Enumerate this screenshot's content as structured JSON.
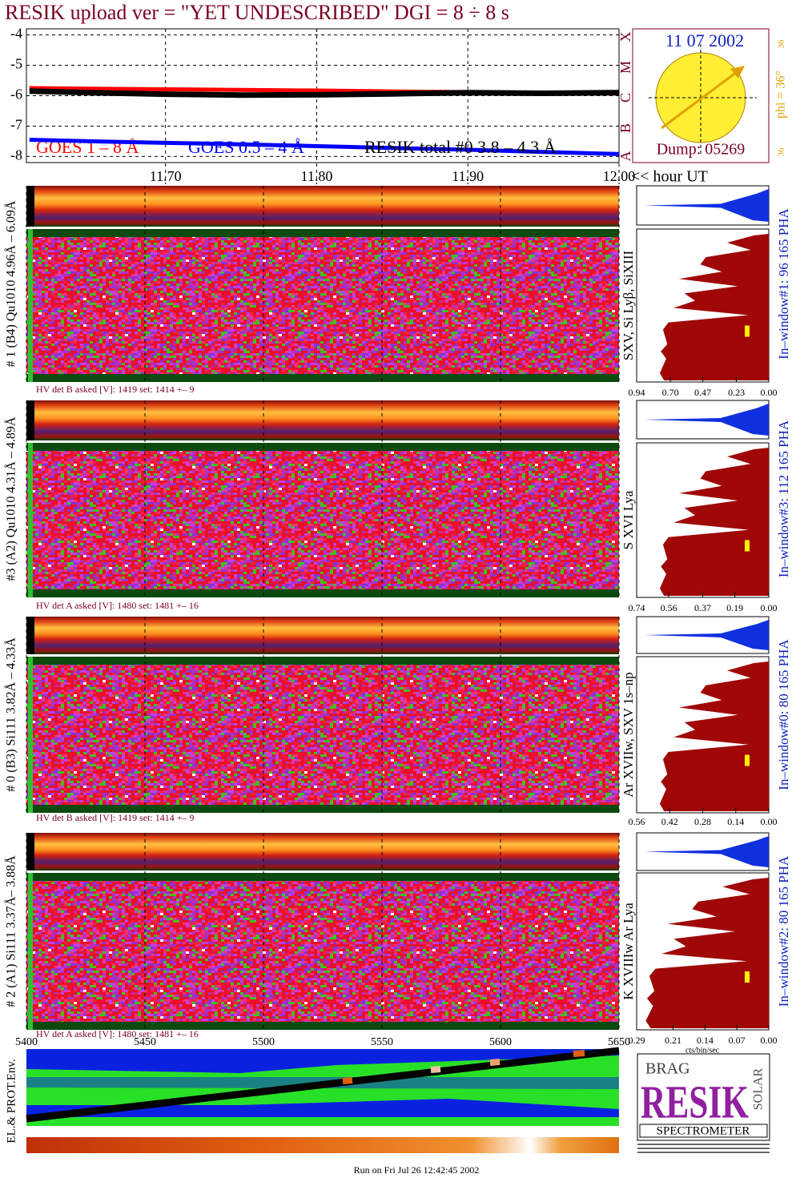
{
  "title": "RESIK upload ver = \"YET UNDESCRIBED\"  DGI =   8 ÷   8 s",
  "chart_data": {
    "type": "line",
    "xlim": [
      11.608,
      12.0
    ],
    "xticks": [
      {
        "value": 11.7,
        "label": "11.70"
      },
      {
        "value": 11.8,
        "label": "11.80"
      },
      {
        "value": 11.9,
        "label": "11.90"
      },
      {
        "value": 12,
        "label": "12.00"
      }
    ],
    "x_axis_label": "<< hour UT",
    "ylim": [
      -8.2,
      -3.8
    ],
    "yticks": [
      -4,
      -5,
      -6,
      -7,
      -8
    ],
    "grid": true,
    "x": [
      11.61,
      11.65,
      11.7,
      11.75,
      11.8,
      11.85,
      11.9,
      11.95,
      12.0
    ],
    "series": [
      {
        "name": "GOES 1 – 8 Å",
        "color": "#ff0000",
        "values": [
          -5.75,
          -5.77,
          -5.79,
          -5.81,
          -5.83,
          -5.86,
          -5.88,
          -5.91,
          -5.93
        ]
      },
      {
        "name": "GOES 0.5 – 4 Å",
        "color": "#0000ff",
        "values": [
          -7.45,
          -7.5,
          -7.55,
          -7.6,
          -7.66,
          -7.72,
          -7.78,
          -7.85,
          -7.92
        ]
      },
      {
        "name": "RESIK total #0  3.8 – 4.3 Å",
        "color": "#000000",
        "values": [
          -5.85,
          -5.9,
          -5.95,
          -5.98,
          -5.97,
          -5.94,
          -5.9,
          -5.92,
          -5.9
        ]
      }
    ]
  },
  "sun": {
    "date": "11 07 2002",
    "phi": "phi = 36°",
    "dump": "Dump: 05269",
    "classes": [
      "A",
      "B",
      "C",
      "M",
      "X"
    ],
    "angle_top": "36",
    "angle_bottom": "36"
  },
  "panels": [
    {
      "label": "# 1 (B4) Qu1010 4.96Å – 6.09Å",
      "lines": "SXV, Si Lyβ, SiXIII",
      "window": "In–window#1:   96 165  PHA",
      "hv": "HV det B asked [V]:  1419  set:  1414  +–    9",
      "pha_xlim": [
        0.94,
        0
      ],
      "pha_ticks": [
        0.94,
        {
          "value": 0.7,
          "label": "0.70"
        },
        0.47,
        0.23,
        {
          "value": 0,
          "label": "0.00"
        }
      ]
    },
    {
      "label": "#3 (A2) Qu1010  4.31Å – 4.89Å",
      "lines": "S XVI Lya",
      "window": "In–window#3:  112 165  PHA",
      "hv": "HV det A asked [V]:  1480  set:  1481  +–    16",
      "pha_xlim": [
        0.74,
        0
      ],
      "pha_ticks": [
        0.74,
        0.56,
        0.37,
        0.19,
        {
          "value": 0,
          "label": "0.00"
        }
      ]
    },
    {
      "label": "# 0 (B3) Si111  3.82Å – 4.33Å",
      "lines": "Ar XVIIw,  SXV 1s–np",
      "window": "In–window#0:   80 165  PHA",
      "hv": "HV det B asked [V]:  1419  set:  1414  +–    9",
      "pha_xlim": [
        0.56,
        0
      ],
      "pha_ticks": [
        0.56,
        0.42,
        0.28,
        0.14,
        {
          "value": 0,
          "label": "0.00"
        }
      ]
    },
    {
      "label": "# 2 (A1) Si111  3.37Å– 3.88Å",
      "lines": "K XVIIIw  Ar Lya",
      "window": "In–window#2:   80 165  PHA",
      "hv": "HV det A asked [V]:  1480  set:  1481  +–    16",
      "pha_xlim": [
        0.29,
        0
      ],
      "pha_ticks": [
        0.29,
        0.21,
        0.14,
        0.07,
        {
          "value": 0,
          "label": "0.00"
        }
      ]
    }
  ],
  "pha_axis_label": "cts/bin/sec",
  "env": {
    "label": "EL.& PROT.Env.",
    "xlim": [
      5400,
      5650
    ],
    "xticks": [
      5400,
      5450,
      5500,
      5550,
      5600,
      5650
    ]
  },
  "logo": {
    "top": "BRAG",
    "main": "RESIK",
    "side": "SOLAR",
    "bottom": "SPECTROMETER"
  },
  "footer": "Run on Fri Jul 26 12:42:45 2002"
}
